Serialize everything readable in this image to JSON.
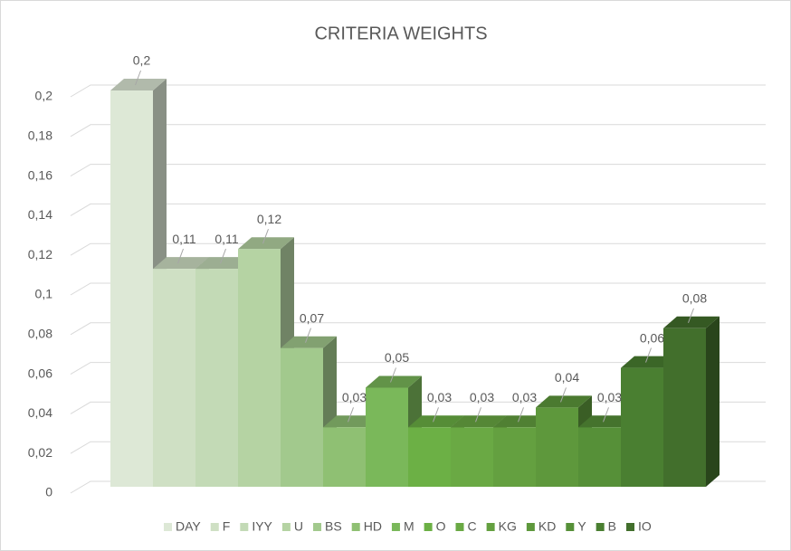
{
  "chart_data": {
    "type": "bar3d",
    "title": "CRITERIA WEIGHTS",
    "categories": [
      "DAY",
      "F",
      "IYY",
      "U",
      "BS",
      "HD",
      "M",
      "O",
      "C",
      "KG",
      "KD",
      "Y",
      "B",
      "IO"
    ],
    "values": [
      0.2,
      0.11,
      0.11,
      0.12,
      0.07,
      0.03,
      0.05,
      0.03,
      0.03,
      0.03,
      0.04,
      0.03,
      0.06,
      0.08
    ],
    "value_labels": [
      "0,2",
      "0,11",
      "0,11",
      "0,12",
      "0,07",
      "0,03",
      "0,05",
      "0,03",
      "0,03",
      "0,03",
      "0,04",
      "0,03",
      "0,06",
      "0,08"
    ],
    "colors": [
      "#dde8d6",
      "#cfe0c4",
      "#c3dab6",
      "#b5d3a3",
      "#a2c98d",
      "#8fc073",
      "#7ab85a",
      "#6cb045",
      "#6aa944",
      "#64a040",
      "#5e983c",
      "#569038",
      "#4a7f31",
      "#426f2c"
    ],
    "ylim": [
      0,
      0.2
    ],
    "yticks": [
      {
        "value": 0,
        "label": "0"
      },
      {
        "value": 0.02,
        "label": "0,02"
      },
      {
        "value": 0.04,
        "label": "0,04"
      },
      {
        "value": 0.06,
        "label": "0,06"
      },
      {
        "value": 0.08,
        "label": "0,08"
      },
      {
        "value": 0.1,
        "label": "0,1"
      },
      {
        "value": 0.12,
        "label": "0,12"
      },
      {
        "value": 0.14,
        "label": "0,14"
      },
      {
        "value": 0.16,
        "label": "0,16"
      },
      {
        "value": 0.18,
        "label": "0,18"
      },
      {
        "value": 0.2,
        "label": "0,2"
      }
    ],
    "grid": true,
    "legend": "bottom"
  }
}
